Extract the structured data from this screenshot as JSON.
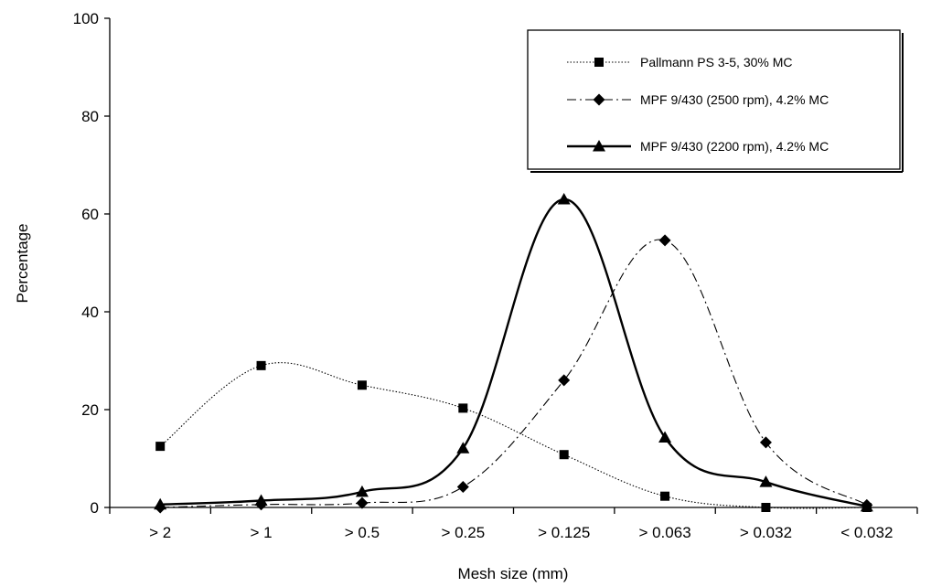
{
  "chart_data": {
    "type": "line",
    "title": "",
    "xlabel": "Mesh size (mm)",
    "ylabel": "Percentage",
    "categories": [
      "> 2",
      "> 1",
      "> 0.5",
      "> 0.25",
      "> 0.125",
      "> 0.063",
      "> 0.032",
      "< 0.032"
    ],
    "ylim": [
      0,
      100
    ],
    "yticks": [
      "0",
      "20",
      "40",
      "60",
      "80",
      "100"
    ],
    "grid": false,
    "legend_position": "top-right",
    "series": [
      {
        "name": "Pallmann PS 3-5, 30% MC",
        "values": [
          12.5,
          29,
          25,
          20.3,
          10.8,
          2.3,
          0,
          0
        ],
        "color": "#000000",
        "marker": "square",
        "line_style": "dotted"
      },
      {
        "name": "MPF 9/430 (2500 rpm), 4.2% MC",
        "values": [
          0,
          0.6,
          0.9,
          4.2,
          26,
          54.6,
          13.3,
          0.5
        ],
        "color": "#000000",
        "marker": "diamond",
        "line_style": "dash-dot"
      },
      {
        "name": "MPF 9/430 (2200 rpm), 4.2% MC",
        "values": [
          0.6,
          1.4,
          3.2,
          12.1,
          63,
          14.3,
          5.2,
          0.2
        ],
        "color": "#000000",
        "marker": "triangle",
        "line_style": "solid"
      }
    ]
  }
}
